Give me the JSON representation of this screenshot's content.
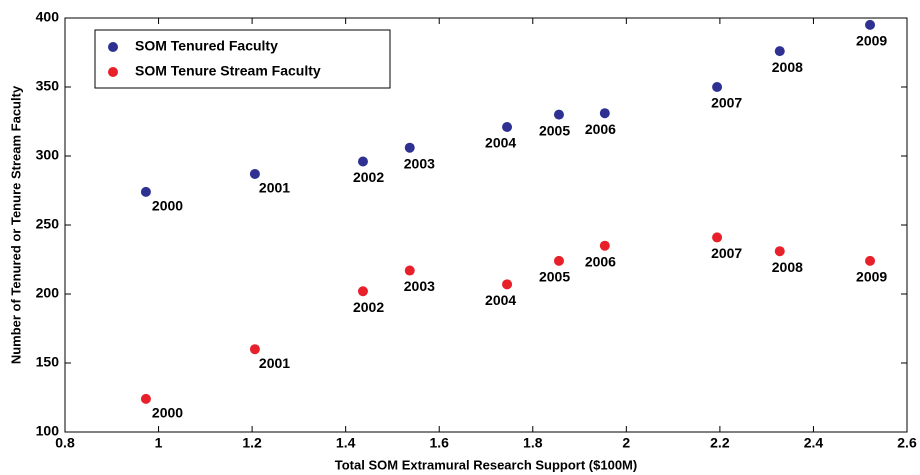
{
  "chart_data": {
    "type": "scatter",
    "x_label": "Total SOM Extramural Research Support ($100M)",
    "y_label": "Number of Tenured or Tenure Stream Faculty",
    "x": [
      0.973,
      1.206,
      1.437,
      1.537,
      1.745,
      1.856,
      1.954,
      2.194,
      2.328,
      2.521
    ],
    "point_labels": [
      "2000",
      "2001",
      "2002",
      "2003",
      "2004",
      "2005",
      "2006",
      "2007",
      "2008",
      "2009"
    ],
    "series": [
      {
        "name": "SOM Tenured Faculty",
        "color": "#2e3192",
        "values": [
          274,
          287,
          296,
          306,
          321,
          330,
          331,
          350,
          376,
          395
        ]
      },
      {
        "name": "SOM Tenure Stream Faculty",
        "color": "#e8202a",
        "values": [
          124,
          160,
          202,
          217,
          207,
          224,
          235,
          241,
          231,
          224
        ]
      }
    ],
    "xlim": [
      0.8,
      2.6
    ],
    "xticks": [
      0.8,
      1,
      1.2,
      1.4,
      1.6,
      1.8,
      2,
      2.2,
      2.4,
      2.6
    ],
    "ylim": [
      100,
      400
    ],
    "yticks": [
      100,
      150,
      200,
      250,
      300,
      350,
      400
    ],
    "legend": "upper-left",
    "grid": false
  }
}
